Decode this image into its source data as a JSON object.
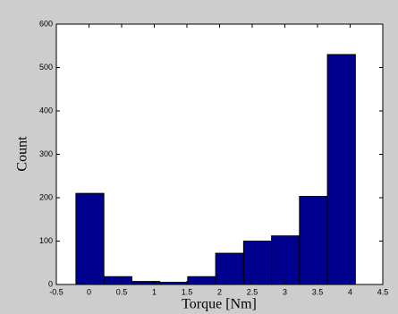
{
  "chart_data": {
    "type": "histogram",
    "xlabel": "Torque [Nm]",
    "ylabel": "Count",
    "bins": [
      -0.2,
      0.228,
      0.656,
      1.084,
      1.512,
      1.94,
      2.368,
      2.796,
      3.224,
      3.652,
      4.08
    ],
    "values": [
      210,
      18,
      7,
      5,
      18,
      72,
      100,
      112,
      203,
      530
    ],
    "color": "#00008f",
    "xlim": [
      -0.5,
      4.5
    ],
    "xticks": [
      -0.5,
      0,
      0.5,
      1,
      1.5,
      2,
      2.5,
      3,
      3.5,
      4,
      4.5
    ],
    "ylim": [
      0,
      600
    ],
    "yticks": [
      0,
      100,
      200,
      300,
      400,
      500,
      600
    ]
  }
}
